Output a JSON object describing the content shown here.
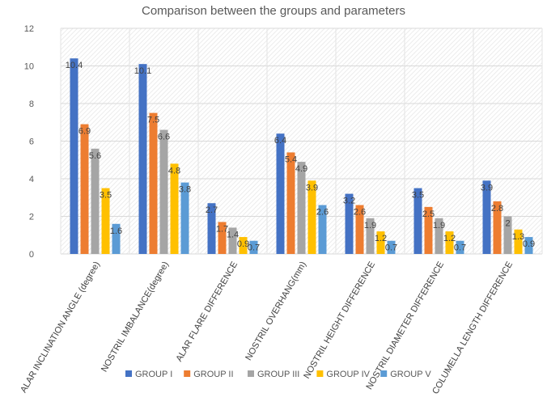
{
  "chart_data": {
    "type": "bar",
    "title": "Comparison between the groups and parameters",
    "xlabel": "",
    "ylabel": "",
    "ylim": [
      0,
      12
    ],
    "yticks": [
      0,
      2,
      4,
      6,
      8,
      10,
      12
    ],
    "grid": true,
    "legend_position": "bottom",
    "categories": [
      "ALAR INCLINATION ANGLE (degree)",
      "NOSTRIL IMBALANCE(degree)",
      "ALAR FLARE DIFFERENCE",
      "NOSTRIL OVERHANG(mm)",
      "NOSTRIL HEIGHT DIFFERENCE",
      "NOSTRIL DIAMETER DIFFERENCE",
      "COLUMELLA LENGTH DIFFERENCE"
    ],
    "series": [
      {
        "name": "GROUP I",
        "color": "#4472C4",
        "values": [
          10.4,
          10.1,
          2.7,
          6.4,
          3.2,
          3.5,
          3.9
        ]
      },
      {
        "name": "GROUP II",
        "color": "#ED7D31",
        "values": [
          6.9,
          7.5,
          1.7,
          5.4,
          2.6,
          2.5,
          2.8
        ]
      },
      {
        "name": "GROUP III",
        "color": "#A5A5A5",
        "values": [
          5.6,
          6.6,
          1.4,
          4.9,
          1.9,
          1.9,
          2
        ]
      },
      {
        "name": "GROUP IV",
        "color": "#FFC000",
        "values": [
          3.5,
          4.8,
          0.9,
          3.9,
          1.2,
          1.2,
          1.3
        ]
      },
      {
        "name": "GROUP V",
        "color": "#5B9BD5",
        "values": [
          1.6,
          3.8,
          0.7,
          2.6,
          0.7,
          0.7,
          0.9
        ]
      }
    ]
  }
}
